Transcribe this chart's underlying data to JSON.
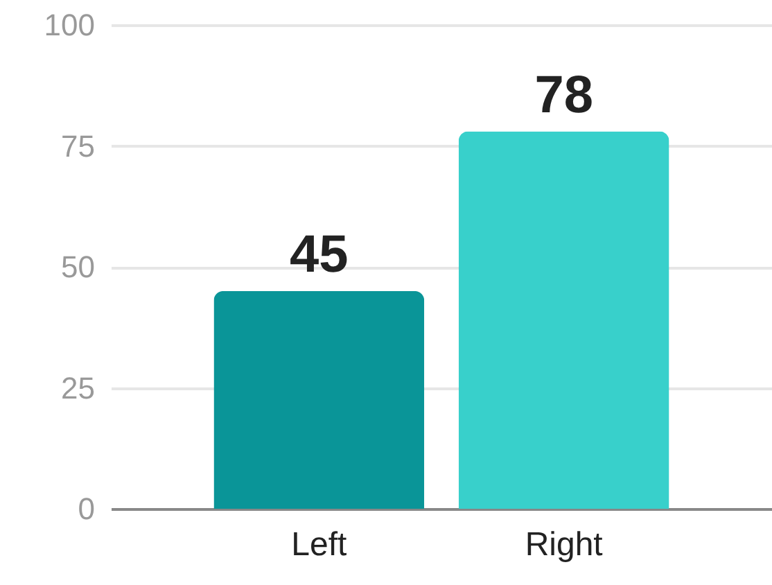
{
  "chart_data": {
    "type": "bar",
    "categories": [
      "Left",
      "Right"
    ],
    "values": [
      45,
      78
    ],
    "colors": [
      "#0a9598",
      "#38d0cb"
    ],
    "ylim": [
      0,
      100
    ],
    "yticks": [
      0,
      25,
      50,
      75,
      100
    ],
    "grid": "y",
    "data_labels": true
  }
}
